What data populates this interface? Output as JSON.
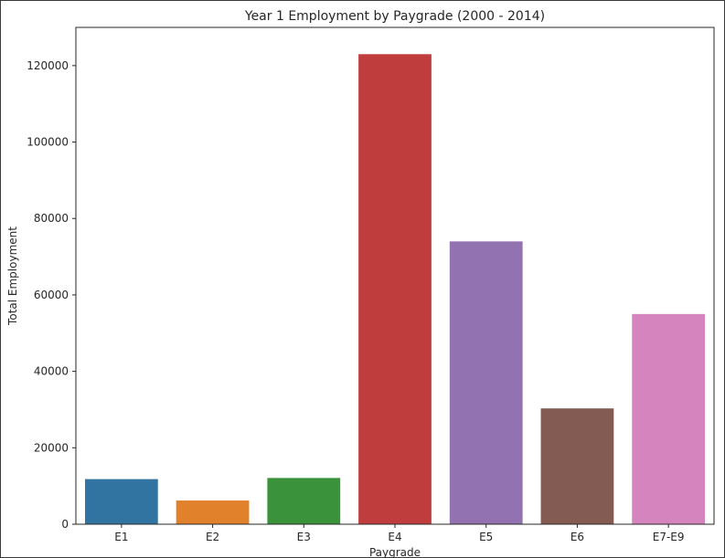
{
  "chart_data": {
    "type": "bar",
    "title": "Year 1 Employment by Paygrade (2000 - 2014)",
    "xlabel": "Paygrade",
    "ylabel": "Total Employment",
    "categories": [
      "E1",
      "E2",
      "E3",
      "E4",
      "E5",
      "E6",
      "E7-E9"
    ],
    "values": [
      11800,
      6200,
      12100,
      123000,
      74000,
      30300,
      55000
    ],
    "colors": [
      "#3274a1",
      "#e1812c",
      "#3a923a",
      "#c03d3e",
      "#9372b2",
      "#845b53",
      "#d684bd"
    ],
    "ylim": [
      0,
      130000
    ],
    "yticks": [
      0,
      20000,
      40000,
      60000,
      80000,
      100000,
      120000
    ],
    "ytick_labels": [
      "0",
      "20000",
      "40000",
      "60000",
      "80000",
      "100000",
      "120000"
    ],
    "grid": false
  }
}
